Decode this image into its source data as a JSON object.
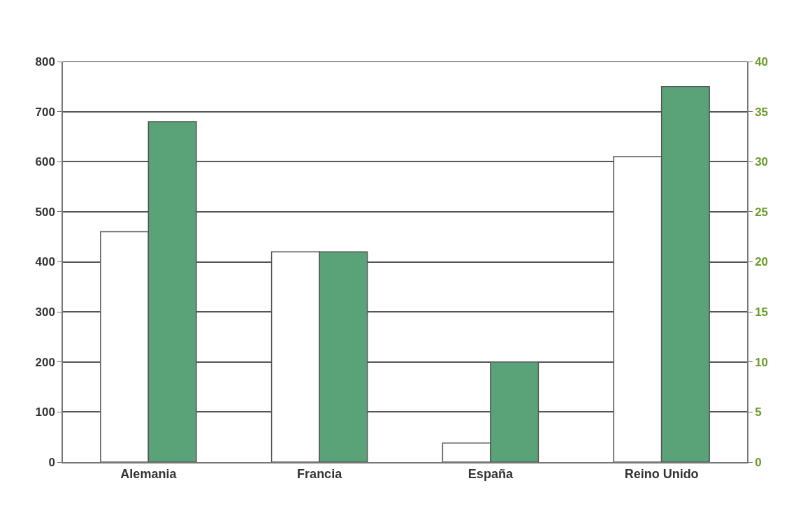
{
  "chart_data": {
    "type": "bar",
    "categories": [
      "Alemania",
      "Francia",
      "España",
      "Reino Unido"
    ],
    "series": [
      {
        "color": "#ffffff",
        "values": [
          460,
          420,
          38,
          610
        ]
      },
      {
        "color": "#5aa378",
        "values": [
          34,
          21,
          10,
          37.5
        ],
        "axis": "y2"
      }
    ],
    "ylim": [
      0,
      800
    ],
    "yticks": [
      0,
      100,
      200,
      300,
      400,
      500,
      600,
      700,
      800
    ],
    "y2lim": [
      0,
      40
    ],
    "y2ticks": [
      0,
      5,
      10,
      15,
      20,
      25,
      30,
      35,
      40
    ],
    "grid": "y"
  }
}
